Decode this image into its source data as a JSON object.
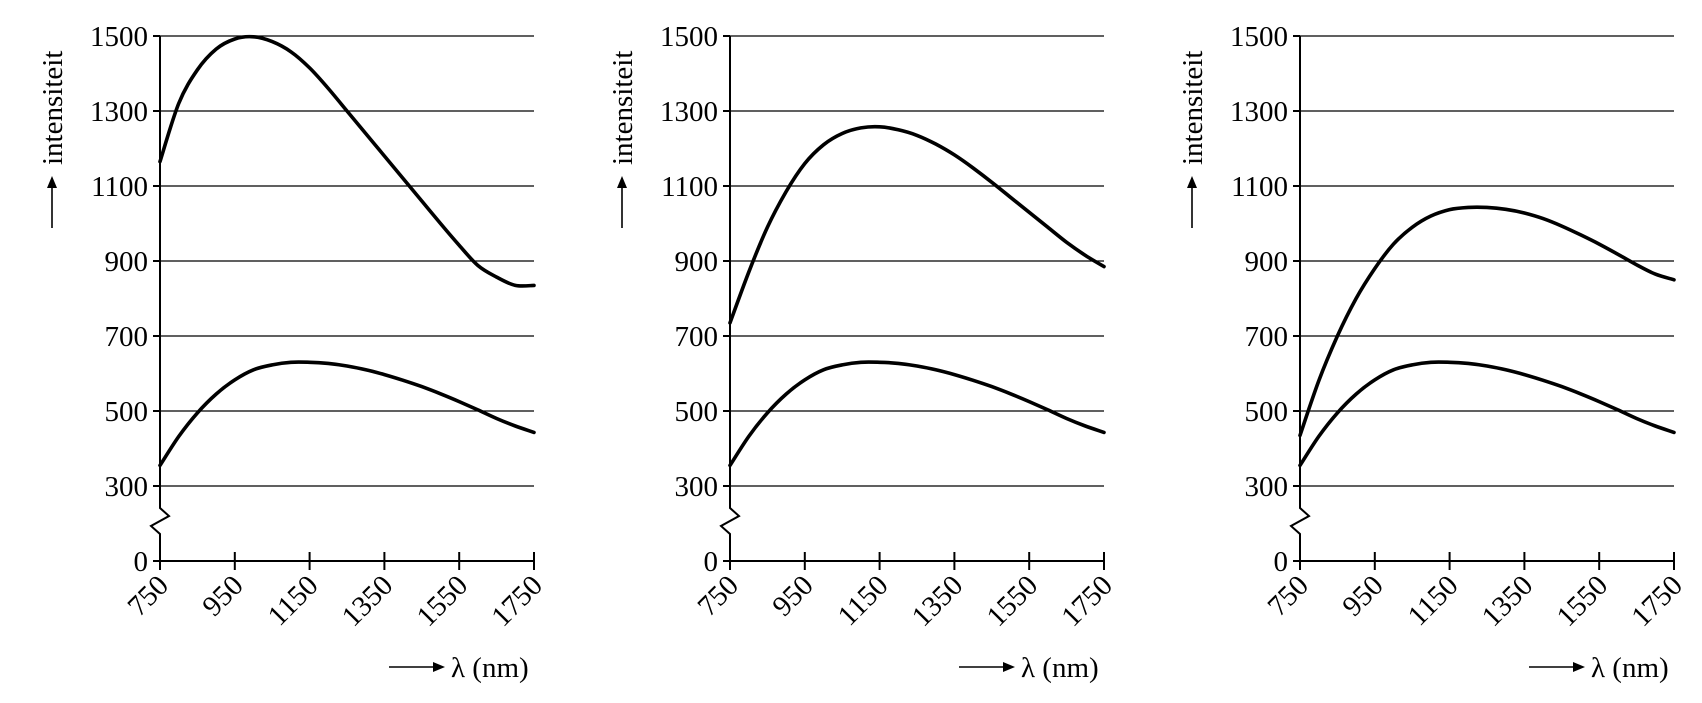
{
  "chart_data": [
    {
      "type": "line",
      "xlabel_arrow": "⟶",
      "xlabel": "λ (nm)",
      "ylabel": "intensiteit",
      "xlim": [
        750,
        1750
      ],
      "ylim": [
        0,
        1500
      ],
      "y_axis_break": [
        0,
        300
      ],
      "grid": "horizontal",
      "xticks": [
        "750",
        "950",
        "1150",
        "1350",
        "1550",
        "1750"
      ],
      "yticks": [
        "0",
        "300",
        "500",
        "700",
        "900",
        "1100",
        "1300",
        "1500"
      ],
      "series": [
        {
          "x": [
            750,
            800,
            850,
            900,
            950,
            1000,
            1050,
            1100,
            1150,
            1200,
            1250,
            1300,
            1350,
            1400,
            1450,
            1500,
            1550,
            1600,
            1650,
            1700,
            1750
          ],
          "y": [
            1165,
            1320,
            1410,
            1465,
            1492,
            1498,
            1485,
            1458,
            1415,
            1360,
            1300,
            1240,
            1180,
            1120,
            1060,
            1000,
            942,
            888,
            857,
            835,
            835
          ]
        },
        {
          "x": [
            750,
            800,
            850,
            900,
            950,
            1000,
            1050,
            1100,
            1150,
            1200,
            1250,
            1300,
            1350,
            1400,
            1450,
            1500,
            1550,
            1600,
            1650,
            1700,
            1750
          ],
          "y": [
            355,
            432,
            495,
            545,
            583,
            610,
            623,
            630,
            630,
            627,
            620,
            610,
            597,
            582,
            565,
            546,
            525,
            503,
            480,
            460,
            443
          ]
        }
      ]
    },
    {
      "type": "line",
      "xlabel_arrow": "⟶",
      "xlabel": "λ (nm)",
      "ylabel": "intensiteit",
      "xlim": [
        750,
        1750
      ],
      "ylim": [
        0,
        1500
      ],
      "y_axis_break": [
        0,
        300
      ],
      "grid": "horizontal",
      "xticks": [
        "750",
        "950",
        "1150",
        "1350",
        "1550",
        "1750"
      ],
      "yticks": [
        "0",
        "300",
        "500",
        "700",
        "900",
        "1100",
        "1300",
        "1500"
      ],
      "series": [
        {
          "x": [
            750,
            800,
            850,
            900,
            950,
            1000,
            1050,
            1100,
            1150,
            1200,
            1250,
            1300,
            1350,
            1400,
            1450,
            1500,
            1550,
            1600,
            1650,
            1700,
            1750
          ],
          "y": [
            735,
            870,
            990,
            1085,
            1160,
            1210,
            1240,
            1255,
            1258,
            1250,
            1235,
            1212,
            1183,
            1148,
            1110,
            1070,
            1030,
            990,
            950,
            915,
            885
          ]
        },
        {
          "x": [
            750,
            800,
            850,
            900,
            950,
            1000,
            1050,
            1100,
            1150,
            1200,
            1250,
            1300,
            1350,
            1400,
            1450,
            1500,
            1550,
            1600,
            1650,
            1700,
            1750
          ],
          "y": [
            355,
            432,
            495,
            545,
            583,
            610,
            623,
            630,
            630,
            627,
            620,
            610,
            597,
            582,
            565,
            546,
            525,
            503,
            480,
            460,
            443
          ]
        }
      ]
    },
    {
      "type": "line",
      "xlabel_arrow": "⟶",
      "xlabel": "λ (nm)",
      "ylabel": "intensiteit",
      "xlim": [
        750,
        1750
      ],
      "ylim": [
        0,
        1500
      ],
      "y_axis_break": [
        0,
        300
      ],
      "grid": "horizontal",
      "xticks": [
        "750",
        "950",
        "1150",
        "1350",
        "1550",
        "1750"
      ],
      "yticks": [
        "0",
        "300",
        "500",
        "700",
        "900",
        "1100",
        "1300",
        "1500"
      ],
      "series": [
        {
          "x": [
            750,
            800,
            850,
            900,
            950,
            1000,
            1050,
            1100,
            1150,
            1200,
            1250,
            1300,
            1350,
            1400,
            1450,
            1500,
            1550,
            1600,
            1650,
            1700,
            1750
          ],
          "y": [
            435,
            580,
            700,
            800,
            880,
            945,
            990,
            1020,
            1037,
            1043,
            1043,
            1038,
            1028,
            1013,
            993,
            970,
            945,
            918,
            890,
            865,
            850
          ]
        },
        {
          "x": [
            750,
            800,
            850,
            900,
            950,
            1000,
            1050,
            1100,
            1150,
            1200,
            1250,
            1300,
            1350,
            1400,
            1450,
            1500,
            1550,
            1600,
            1650,
            1700,
            1750
          ],
          "y": [
            355,
            432,
            495,
            545,
            583,
            610,
            623,
            630,
            630,
            627,
            620,
            610,
            597,
            582,
            565,
            546,
            525,
            503,
            480,
            460,
            443
          ]
        }
      ]
    }
  ]
}
